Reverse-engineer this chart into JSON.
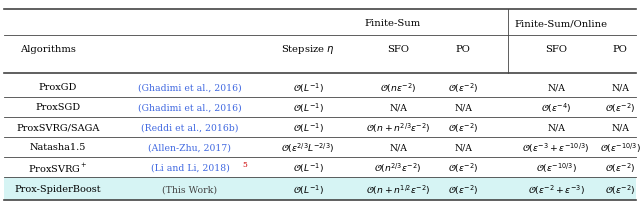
{
  "figsize": [
    6.4,
    2.07
  ],
  "dpi": 100,
  "bg_color": "#ffffff",
  "highlight_color": "#d6f4f4",
  "ref_color": "#4169E1",
  "footnote_color": "#cc0000",
  "rows": [
    {
      "algo": "ProxGD",
      "ref": "(Ghadimi et al., 2016)",
      "stepsize": "$\\mathcal{O}(L^{-1})$",
      "fs_sfo": "$\\mathcal{O}(n\\epsilon^{-2})$",
      "fs_po": "$\\mathcal{O}(\\epsilon^{-2})$",
      "fso_sfo": "N/A",
      "fso_po": "N/A",
      "highlight": false,
      "ref_footnote": null
    },
    {
      "algo": "ProxSGD",
      "ref": "(Ghadimi et al., 2016)",
      "stepsize": "$\\mathcal{O}(L^{-1})$",
      "fs_sfo": "N/A",
      "fs_po": "N/A",
      "fso_sfo": "$\\mathcal{O}(\\epsilon^{-4})$",
      "fso_po": "$\\mathcal{O}(\\epsilon^{-2})$",
      "highlight": false,
      "ref_footnote": null
    },
    {
      "algo": "ProxSVRG/SAGA",
      "ref": "(Reddi et al., 2016b)",
      "stepsize": "$\\mathcal{O}(L^{-1})$",
      "fs_sfo": "$\\mathcal{O}(n+n^{2/3}\\epsilon^{-2})$",
      "fs_po": "$\\mathcal{O}(\\epsilon^{-2})$",
      "fso_sfo": "N/A",
      "fso_po": "N/A",
      "highlight": false,
      "ref_footnote": null
    },
    {
      "algo": "Natasha1.5",
      "ref": "(Allen-Zhu, 2017)",
      "stepsize": "$\\mathcal{O}(\\epsilon^{2/3}L^{-2/3})$",
      "fs_sfo": "N/A",
      "fs_po": "N/A",
      "fso_sfo": "$\\mathcal{O}(\\epsilon^{-3}+\\epsilon^{-10/3})$",
      "fso_po": "$\\mathcal{O}(\\epsilon^{-10/3})$",
      "highlight": false,
      "ref_footnote": null
    },
    {
      "algo": "ProxSVRG$^+$",
      "ref": "(Li and Li, 2018)",
      "stepsize": "$\\mathcal{O}(L^{-1})$",
      "fs_sfo": "$\\mathcal{O}(n^{2/3}\\epsilon^{-2})$",
      "fs_po": "$\\mathcal{O}(\\epsilon^{-2})$",
      "fso_sfo": "$\\mathcal{O}(\\epsilon^{-10/3})$",
      "fso_po": "$\\mathcal{O}(\\epsilon^{-2})$",
      "highlight": false,
      "ref_footnote": "5"
    },
    {
      "algo": "Prox-SpiderBoost",
      "ref": "(This Work)",
      "stepsize": "$\\mathcal{O}(L^{-1})$",
      "fs_sfo": "$\\mathcal{O}(n+n^{1/2}\\epsilon^{-2})$",
      "fs_po": "$\\mathcal{O}(\\epsilon^{-2})$",
      "fso_sfo": "$\\mathcal{O}(\\epsilon^{-2}+\\epsilon^{-3})$",
      "fso_po": "$\\mathcal{O}(\\epsilon^{-2})$",
      "highlight": true,
      "ref_footnote": null
    }
  ]
}
